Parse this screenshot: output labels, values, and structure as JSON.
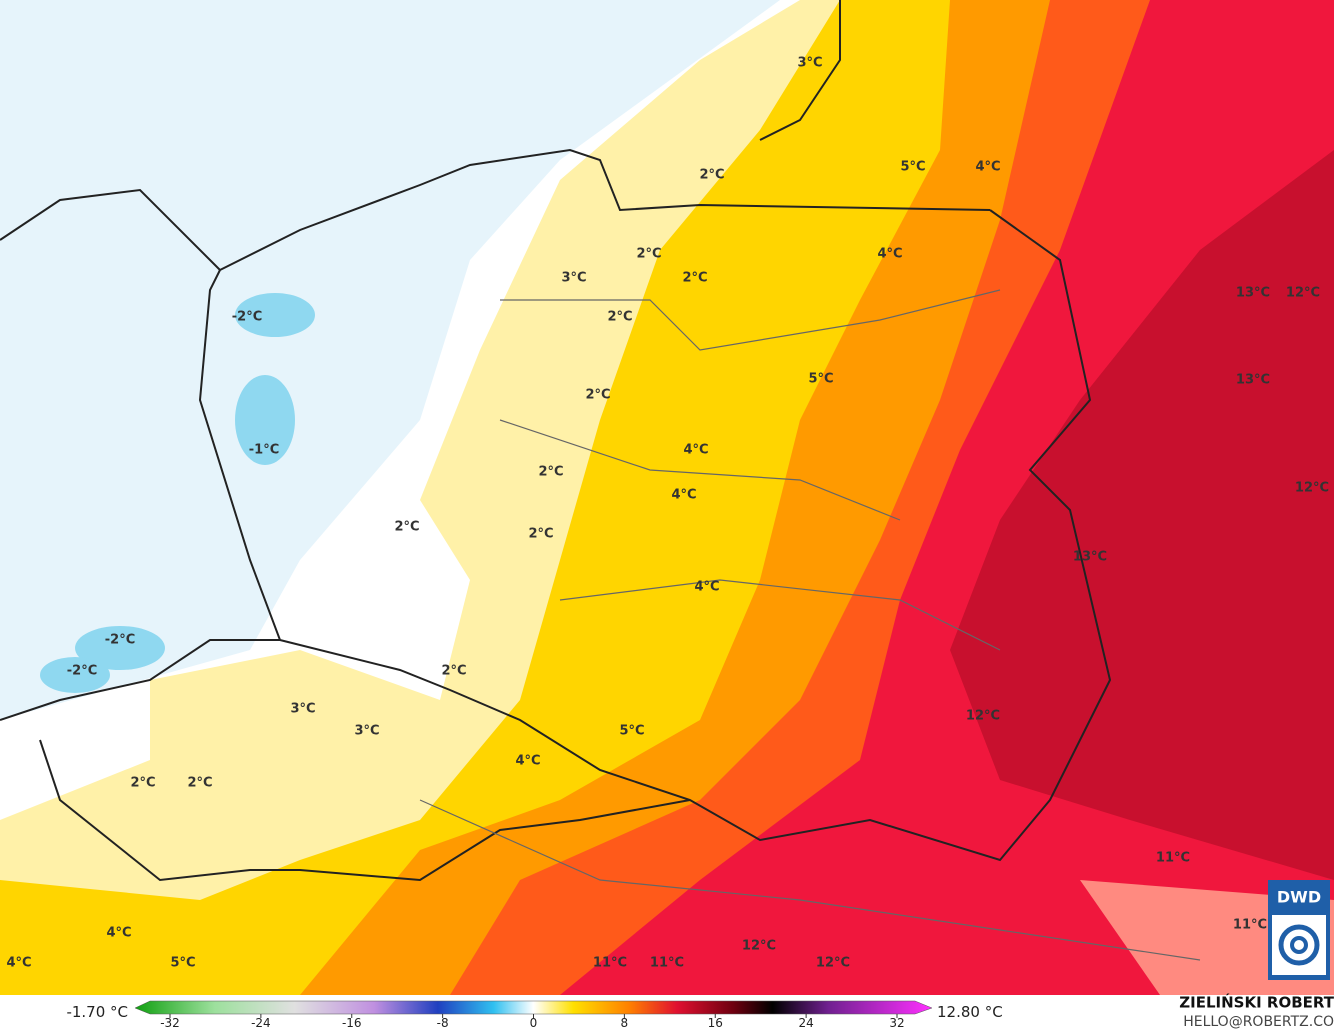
{
  "map": {
    "labels": [
      "3°C",
      "5°C",
      "4°C",
      "2°C",
      "2°C",
      "4°C",
      "3°C",
      "2°C",
      "13°C",
      "12°C",
      "-2°C",
      "2°C",
      "5°C",
      "13°C",
      "2°C",
      "-1°C",
      "4°C",
      "2°C",
      "12°C",
      "4°C",
      "2°C",
      "2°C",
      "13°C",
      "4°C",
      "-2°C",
      "-2°C",
      "2°C",
      "3°C",
      "12°C",
      "3°C",
      "5°C",
      "4°C",
      "2°C",
      "2°C",
      "11°C",
      "11°C",
      "4°C",
      "4°C",
      "5°C",
      "12°C",
      "11°C",
      "11°C",
      "12°C"
    ],
    "logo": "DWD"
  },
  "colorbar": {
    "min_label": "-1.70 °C",
    "max_label": "12.80 °C",
    "ticks": [
      -32,
      -24,
      -16,
      -8,
      0,
      8,
      16,
      24,
      32
    ]
  },
  "credits": {
    "author": "ZIELIŃSKI ROBERT",
    "email": "HELLO@ROBERTZ.CO"
  }
}
